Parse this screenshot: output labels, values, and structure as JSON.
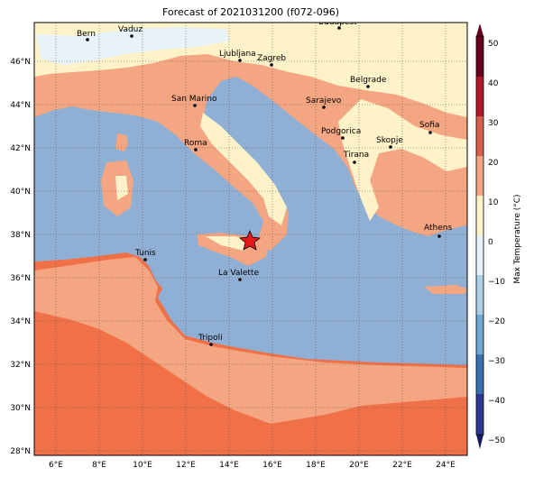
{
  "title": "Forecast of 2021031200 (f072-096)",
  "colorbar": {
    "label": "Max Temperature (°C)",
    "ticks": [
      "50",
      "40",
      "30",
      "20",
      "10",
      "0",
      "−10",
      "−20",
      "−30",
      "−40",
      "−50"
    ],
    "colors": [
      "#67001f",
      "#b2182b",
      "#d6604d",
      "#f4a582",
      "#fdf2c8",
      "#e7f3f8",
      "#abd0e6",
      "#6fa8d0",
      "#3a6fb0",
      "#2b3a90",
      "#171a5e"
    ]
  },
  "axes": {
    "lon_ticks": [
      "6°E",
      "8°E",
      "10°E",
      "12°E",
      "14°E",
      "16°E",
      "18°E",
      "20°E",
      "22°E",
      "24°E"
    ],
    "lat_ticks": [
      "46°N",
      "44°N",
      "42°N",
      "40°N",
      "38°N",
      "36°N",
      "34°N",
      "32°N",
      "30°N",
      "28°N"
    ]
  },
  "cities": [
    {
      "name": "Bern"
    },
    {
      "name": "Vaduz"
    },
    {
      "name": "Budapest"
    },
    {
      "name": "Ljubljana"
    },
    {
      "name": "Zagreb"
    },
    {
      "name": "Belgrade"
    },
    {
      "name": "San Marino"
    },
    {
      "name": "Sarajevo"
    },
    {
      "name": "Podgorica"
    },
    {
      "name": "Skopje"
    },
    {
      "name": "Sofia"
    },
    {
      "name": "Roma"
    },
    {
      "name": "Tirana"
    },
    {
      "name": "Athens"
    },
    {
      "name": "Tunis"
    },
    {
      "name": "La Valette"
    },
    {
      "name": "Tripoli"
    }
  ],
  "colors": {
    "sea": "#8fb0d4",
    "land_warm": "#f4a582",
    "land_hot": "#f07048",
    "land_cool": "#fdf2c8",
    "snow": "#e7f3f8"
  }
}
